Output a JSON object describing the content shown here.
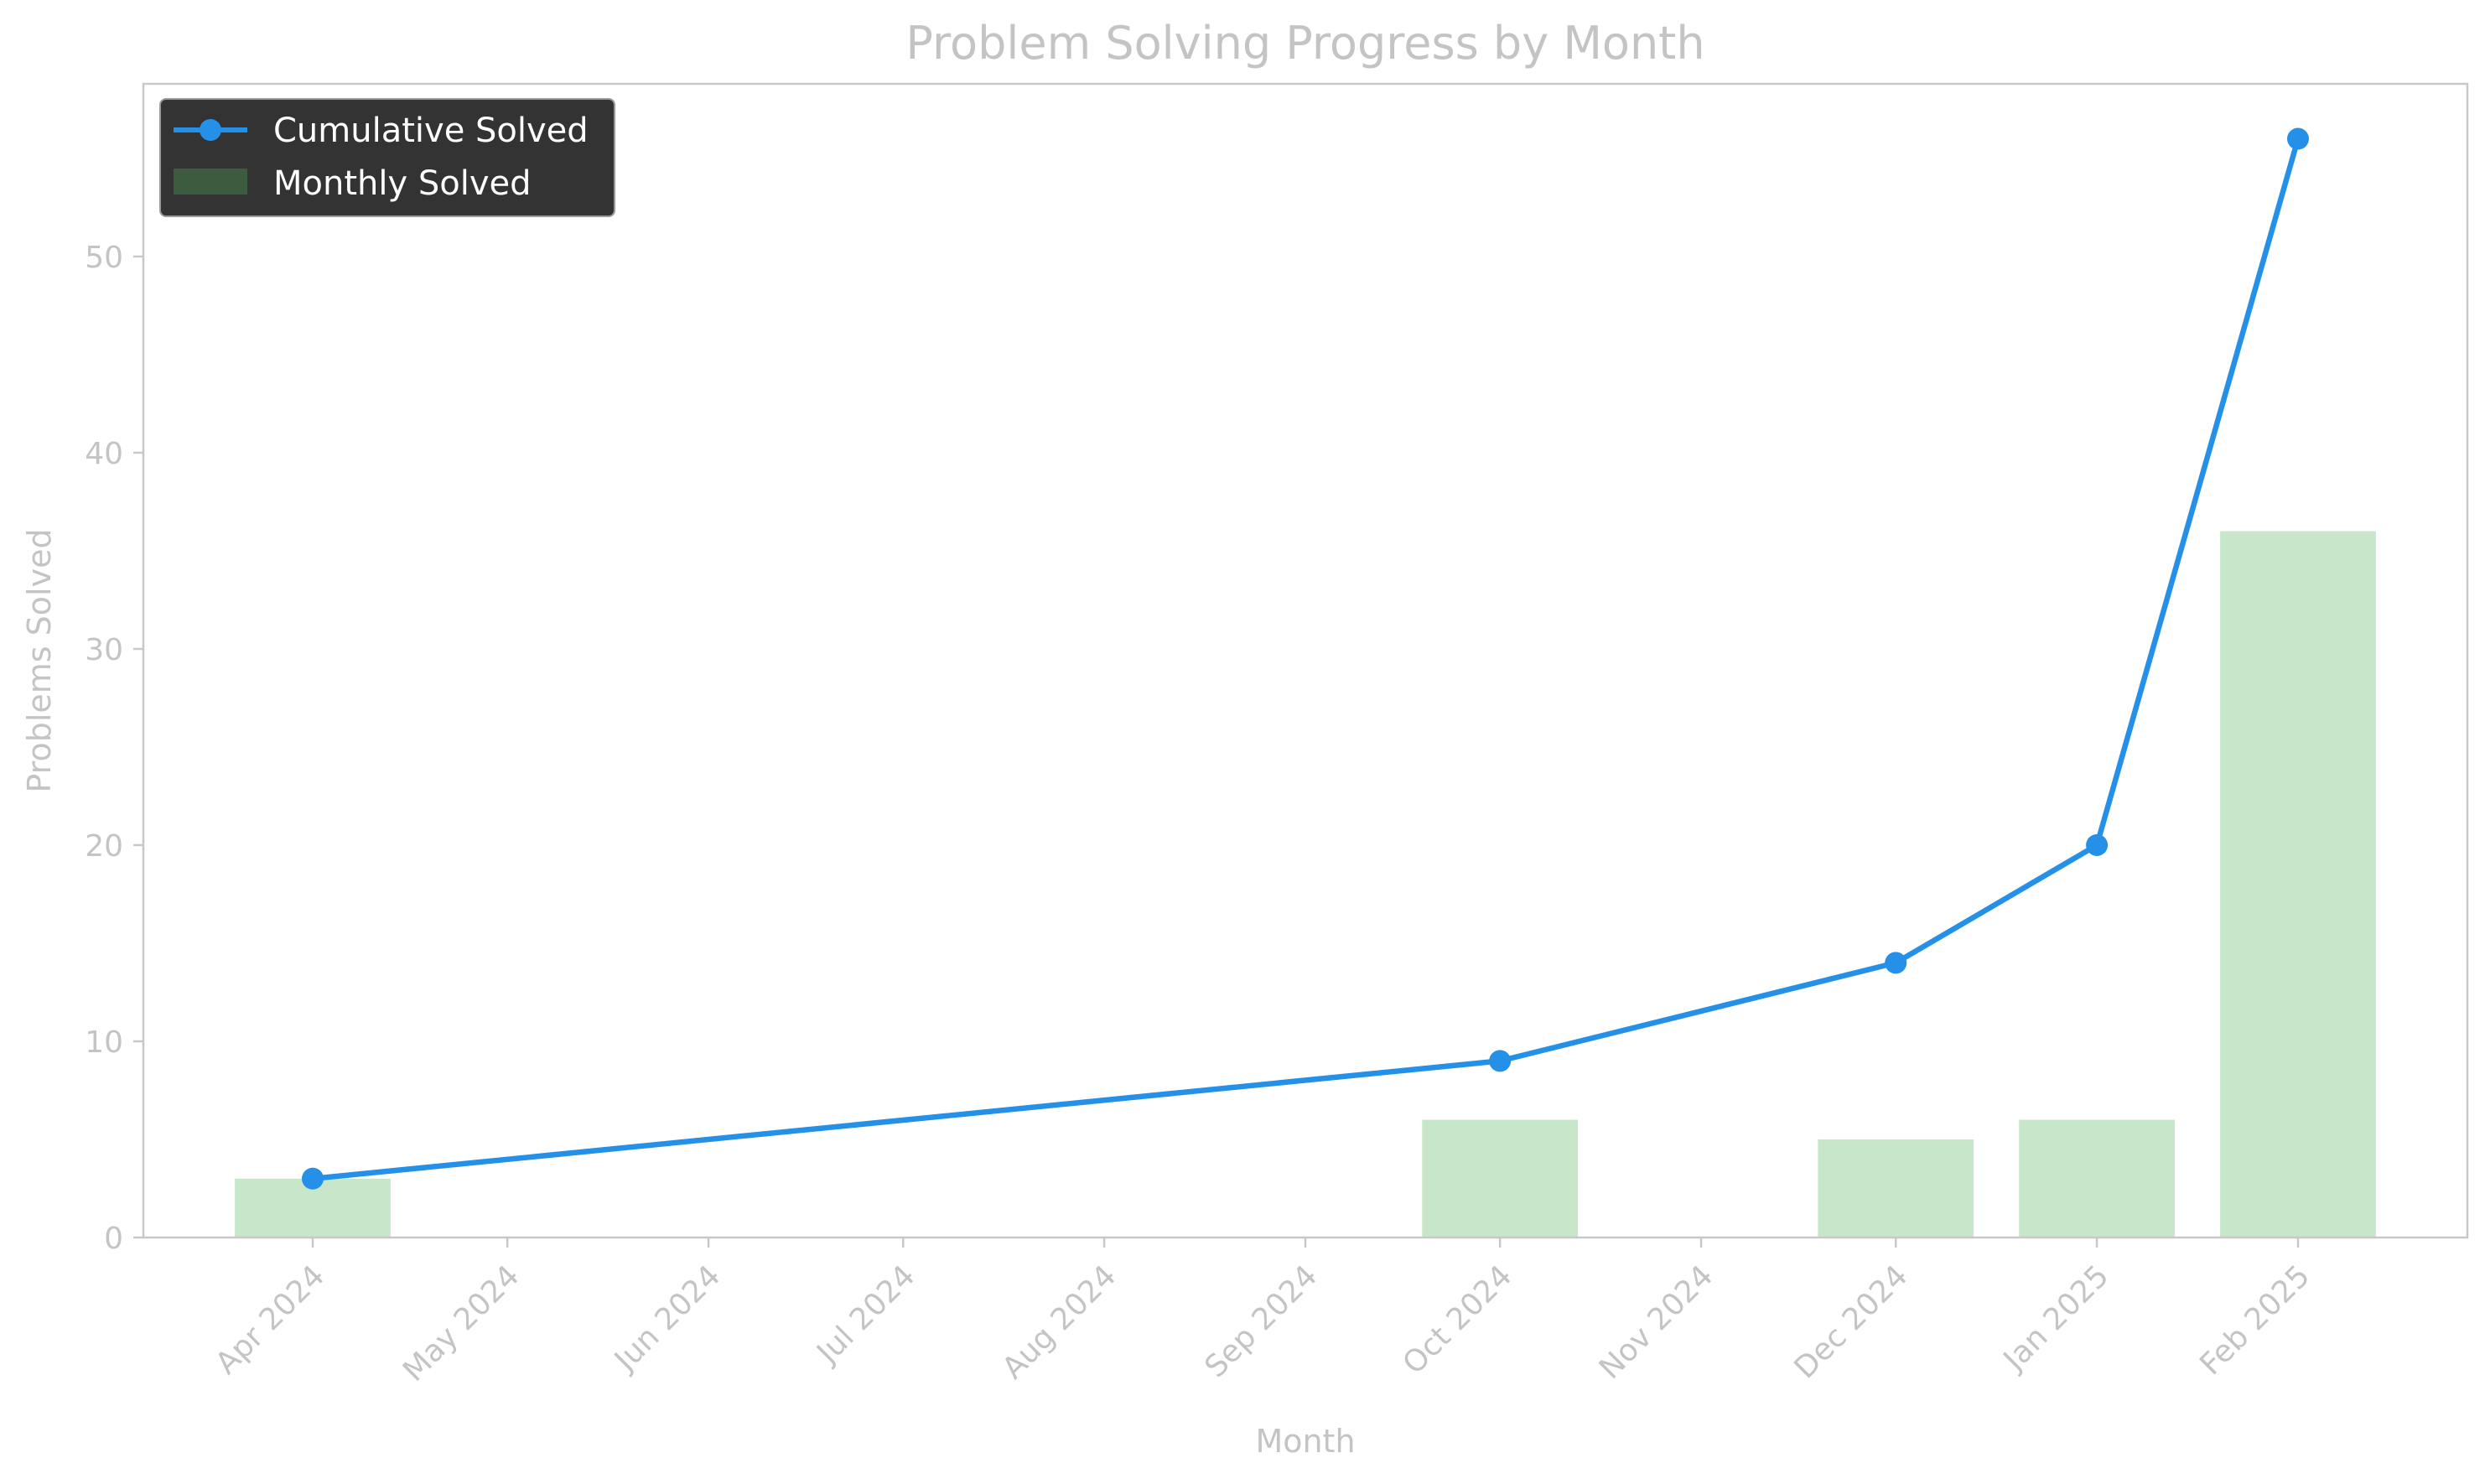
{
  "chart_data": {
    "type": "bar",
    "title": "Problem Solving Progress by Month",
    "xlabel": "Month",
    "ylabel": "Problems Solved",
    "categories": [
      "Apr 2024",
      "May 2024",
      "Jun 2024",
      "Jul 2024",
      "Aug 2024",
      "Sep 2024",
      "Oct 2024",
      "Nov 2024",
      "Dec 2024",
      "Jan 2025",
      "Feb 2025"
    ],
    "x_dates": [
      "2024-04-01",
      "2024-05-01",
      "2024-06-01",
      "2024-07-01",
      "2024-08-01",
      "2024-09-01",
      "2024-10-01",
      "2024-11-01",
      "2024-12-01",
      "2025-01-01",
      "2025-02-01"
    ],
    "yticks": [
      0,
      10,
      20,
      30,
      40,
      50
    ],
    "ylim": [
      0,
      58.8
    ],
    "grid": false,
    "legend_position": "top-left",
    "series": [
      {
        "name": "Cumulative Solved",
        "type": "line",
        "color": "#2490e8",
        "x": [
          "2024-04-01",
          "2024-10-01",
          "2024-12-01",
          "2025-01-01",
          "2025-02-01"
        ],
        "values": [
          3,
          9,
          14,
          20,
          56
        ]
      },
      {
        "name": "Monthly Solved",
        "type": "bar",
        "color": "#c8e6c9",
        "legend_color": "#3d5c3f",
        "x": [
          "2024-04-01",
          "2024-10-01",
          "2024-12-01",
          "2025-01-01",
          "2025-02-01"
        ],
        "values": [
          3,
          6,
          5,
          6,
          36
        ]
      }
    ]
  }
}
